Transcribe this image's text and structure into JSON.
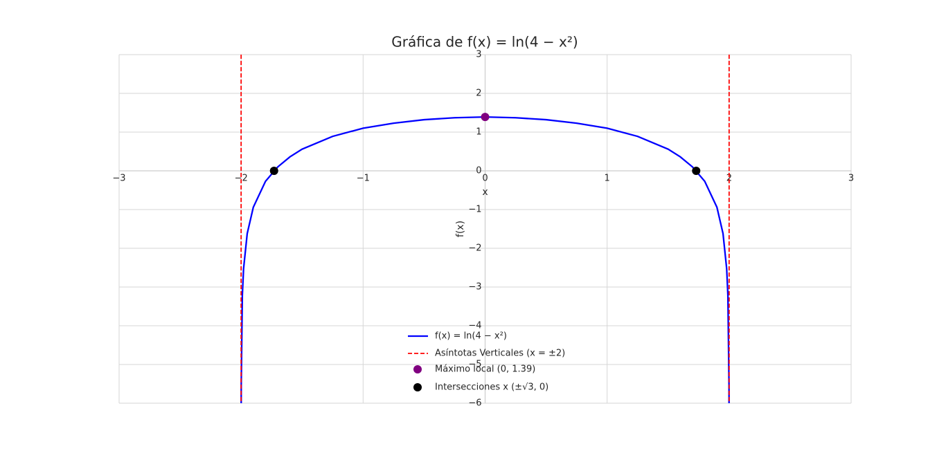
{
  "chart_data": {
    "type": "line",
    "title": "Gráfica de f(x) = ln(4 − x²)",
    "xlabel": "x",
    "ylabel": "f(x)",
    "xlim": [
      -3,
      3
    ],
    "ylim": [
      -6,
      3
    ],
    "xticks": [
      {
        "value": -3,
        "label": "−3"
      },
      {
        "value": -2,
        "label": "−2"
      },
      {
        "value": -1,
        "label": "−1"
      },
      0,
      1,
      2,
      3
    ],
    "yticks": [
      {
        "value": -6,
        "label": "−6"
      },
      {
        "value": -5,
        "label": "−5"
      },
      {
        "value": -4,
        "label": "−4"
      },
      {
        "value": -3,
        "label": "−3"
      },
      {
        "value": -2,
        "label": "−2"
      },
      {
        "value": -1,
        "label": "−1"
      },
      0,
      1,
      2,
      3
    ],
    "grid": true,
    "legend": "lower center",
    "series": [
      {
        "name": "f(x) = ln(4 − x²)",
        "kind": "line",
        "color": "#0000ff",
        "x": [
          -1.9995,
          -1.999,
          -1.99,
          -1.98,
          -1.95,
          -1.9,
          -1.8,
          -1.7,
          -1.6,
          -1.5,
          -1.25,
          -1,
          -0.75,
          -0.5,
          -0.25,
          0,
          0.25,
          0.5,
          0.75,
          1,
          1.25,
          1.5,
          1.6,
          1.7,
          1.8,
          1.9,
          1.95,
          1.98,
          1.99,
          1.999,
          1.9995
        ],
        "values": [
          -6.21,
          -5.52,
          -3.22,
          -2.53,
          -1.62,
          -0.94,
          -0.27,
          0.1,
          0.36,
          0.56,
          0.89,
          1.1,
          1.23,
          1.32,
          1.37,
          1.39,
          1.37,
          1.32,
          1.23,
          1.1,
          0.89,
          0.56,
          0.36,
          0.1,
          -0.27,
          -0.94,
          -1.62,
          -2.53,
          -3.22,
          -5.52,
          -6.21
        ]
      },
      {
        "name": "Asíntotas Verticales (x = ±2)",
        "kind": "vline",
        "color": "#ff0000",
        "x": [
          -2,
          2
        ]
      },
      {
        "name": "Máximo local (0, 1.39)",
        "kind": "scatter",
        "color": "#800080",
        "x": [
          0
        ],
        "values": [
          1.39
        ]
      },
      {
        "name": "Intersecciones x (±√3, 0)",
        "kind": "scatter",
        "color": "#000000",
        "x": [
          -1.73,
          1.73
        ],
        "values": [
          0,
          0
        ]
      }
    ]
  }
}
